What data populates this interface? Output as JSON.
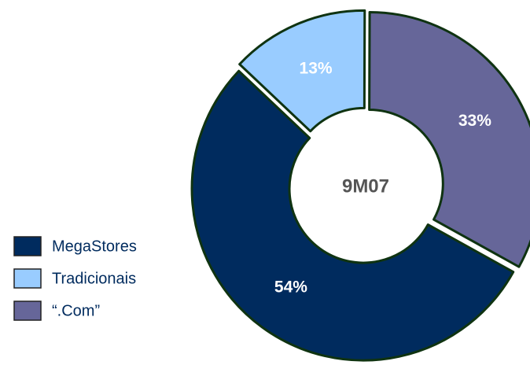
{
  "chart_data": {
    "type": "donut",
    "center_label": "9M07",
    "start_angle": 119,
    "categories": [
      "MegaStores",
      "Tradicionais",
      "“.Com”"
    ],
    "values": [
      54,
      13,
      33
    ],
    "value_labels": [
      "54%",
      "13%",
      "33%"
    ],
    "colors": [
      "#002b5e",
      "#99ccff",
      "#666699"
    ],
    "legend": "bottom-left"
  }
}
